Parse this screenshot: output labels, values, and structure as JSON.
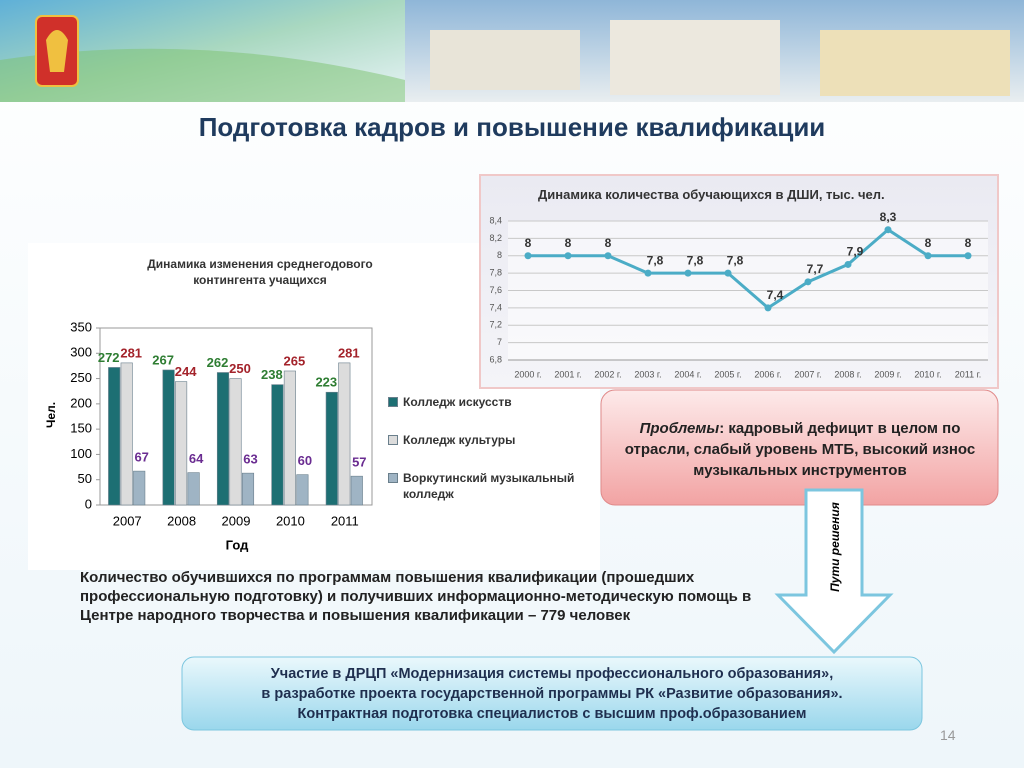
{
  "title": "Подготовка кадров и повышение квалификации",
  "chart_data": [
    {
      "type": "bar",
      "title": "Динамика изменения среднегодового контингента учащихся",
      "xlabel": "Год",
      "ylabel": "Чел.",
      "categories": [
        "2007",
        "2008",
        "2009",
        "2010",
        "2011"
      ],
      "series": [
        {
          "name": "Колледж искусств",
          "color": "#1d6f73",
          "label_color": "#2e7d32",
          "values": [
            272,
            267,
            262,
            238,
            223
          ]
        },
        {
          "name": "Колледж культуры",
          "color": "#dcdcdc",
          "label_color": "#a3222a",
          "values": [
            281,
            244,
            250,
            265,
            281
          ]
        },
        {
          "name": "Воркутинский музыкальный колледж",
          "color": "#9fb4c4",
          "label_color": "#6a2c91",
          "values": [
            67,
            64,
            63,
            60,
            57
          ]
        }
      ],
      "ylim": [
        0,
        350
      ],
      "yticks": [
        0,
        50,
        100,
        150,
        200,
        250,
        300,
        350
      ],
      "grid": false,
      "legend": "right"
    },
    {
      "type": "line",
      "title": "Динамика количества обучающихся в ДШИ, тыс. чел.",
      "categories": [
        "2000 г.",
        "2001 г.",
        "2002 г.",
        "2003 г.",
        "2004 г.",
        "2005 г.",
        "2006 г.",
        "2007 г.",
        "2008 г.",
        "2009 г.",
        "2010 г.",
        "2011 г."
      ],
      "values": [
        8,
        8,
        8,
        7.8,
        7.8,
        7.8,
        7.4,
        7.7,
        7.9,
        8.3,
        8,
        8
      ],
      "value_labels": [
        "8",
        "8",
        "8",
        "7,8",
        "7,8",
        "7,8",
        "7,4",
        "7,7",
        "7,9",
        "8,3",
        "8",
        "8"
      ],
      "color": "#4bacc6",
      "ylim": [
        6.8,
        8.4
      ],
      "yticks": [
        {
          "value": 6.8,
          "label": "6,8"
        },
        {
          "value": 7,
          "label": "7"
        },
        {
          "value": 7.2,
          "label": "7,2"
        },
        {
          "value": 7.4,
          "label": "7,4"
        },
        {
          "value": 7.6,
          "label": "7,6"
        },
        {
          "value": 7.8,
          "label": "7,8"
        },
        8,
        {
          "value": 8.2,
          "label": "8,2"
        },
        {
          "value": 8.4,
          "label": "8,4"
        }
      ],
      "grid": true
    }
  ],
  "problems": {
    "label": "Проблемы",
    "text": ": кадровый дефицит в целом по отрасли, слабый уровень МТБ, высокий износ музыкальных инструментов"
  },
  "arrow_label": "Пути решения",
  "summary": "Количество обучившихся по программам повышения квалификации (прошедших профессиональную подготовку) и получивших информационно-методическую помощь  в Центре народного творчества и повышения квалификации – 779 человек",
  "solutions": [
    "Участие в  ДРЦП «Модернизация системы профессионального образования»,",
    "в разработке проекта государственной программы РК «Развитие образования».",
    "Контрактная подготовка специалистов с высшим проф.образованием"
  ],
  "page_number": "14"
}
